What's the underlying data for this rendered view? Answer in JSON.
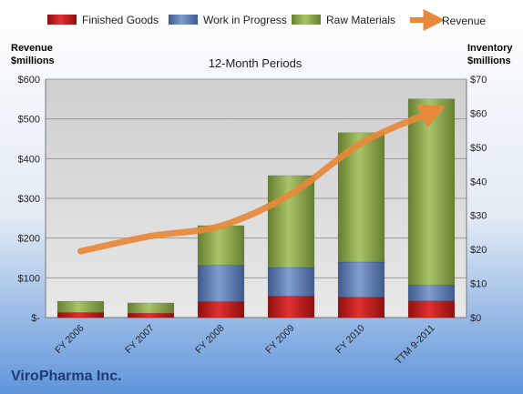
{
  "company": "ViroPharma Inc.",
  "chart_data": {
    "type": "bar",
    "subtype": "stacked-bar-with-line-secondary-axis",
    "title": "12-Month Periods",
    "left_axis_label": [
      "Revenue",
      "$millions"
    ],
    "right_axis_label": [
      "Inventory",
      "$millions"
    ],
    "categories": [
      "FY 2006",
      "FY 2007",
      "FY 2008",
      "FY 2009",
      "FY 2010",
      "TTM 9-2011"
    ],
    "stacked_series_axis": "right",
    "series": [
      {
        "name": "Finished Goods",
        "kind": "bar",
        "axis": "right",
        "color": "#c00000",
        "values": [
          1.5,
          1.3,
          4.7,
          6.3,
          6.0,
          4.9
        ]
      },
      {
        "name": "Work in Progress",
        "kind": "bar",
        "axis": "right",
        "color": "#4f6fa8",
        "values": [
          0.0,
          0.0,
          10.7,
          8.4,
          10.3,
          4.7
        ]
      },
      {
        "name": "Raw Materials",
        "kind": "bar",
        "axis": "right",
        "color": "#8aa848",
        "values": [
          3.3,
          3.0,
          11.6,
          27.0,
          38.0,
          54.6
        ]
      },
      {
        "name": "Revenue",
        "kind": "line",
        "axis": "left",
        "color": "#e8883a",
        "values": [
          167,
          205,
          231,
          311,
          439,
          517
        ]
      }
    ],
    "left_axis": {
      "min": 0,
      "max": 600,
      "ticks": [
        "$-",
        "$100",
        "$200",
        "$300",
        "$400",
        "$500",
        "$600"
      ]
    },
    "right_axis": {
      "min": 0,
      "max": 70,
      "ticks": [
        "$0",
        "$10",
        "$20",
        "$30",
        "$40",
        "$50",
        "$60",
        "$70"
      ]
    },
    "legend_position": "top",
    "grid": "horizontal"
  }
}
